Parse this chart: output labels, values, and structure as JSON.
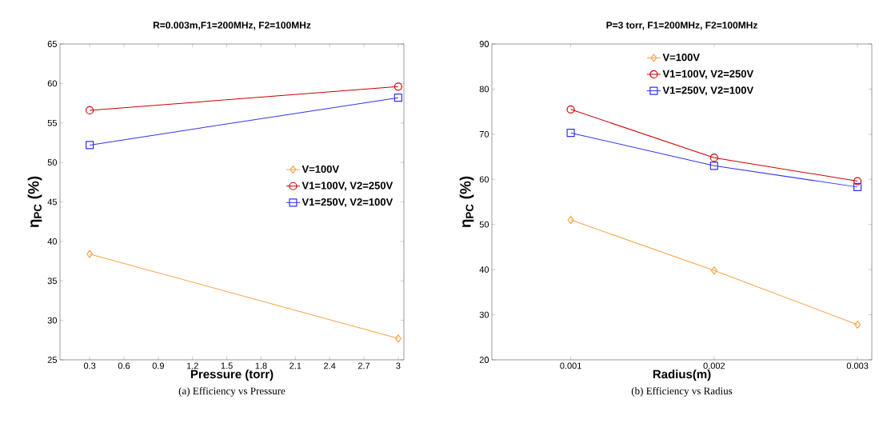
{
  "chart_data": [
    {
      "type": "line",
      "title": "R=0.003m,F1=200MHz, F2=100MHz",
      "xlabel": "Pressure (torr)",
      "ylabel": "η$_{PC}$ (%)",
      "x": [
        0.3,
        3
      ],
      "series": [
        {
          "name": "V=100V",
          "color": "#f5a54a",
          "marker": "diamond",
          "values": [
            38.4,
            27.7
          ]
        },
        {
          "name": "V1=100V, V2=250V",
          "color": "#cc0000",
          "marker": "circle",
          "values": [
            56.6,
            59.6
          ]
        },
        {
          "name": "V1=250V, V2=100V",
          "color": "#3333ee",
          "marker": "square",
          "values": [
            52.2,
            58.2
          ]
        }
      ],
      "xlim": [
        0.04,
        3.05
      ],
      "xticks": [
        0.3,
        0.6,
        0.9,
        1.2,
        1.5,
        1.8,
        2.1,
        2.4,
        2.7,
        3
      ],
      "ylim": [
        25,
        65
      ],
      "yticks": [
        25,
        30,
        35,
        40,
        45,
        50,
        55,
        60,
        65
      ],
      "legend": "right",
      "grid": false,
      "line_style": "solid",
      "annotations": [
        "(a) Efficiency vs Pressure"
      ]
    },
    {
      "type": "line",
      "title": "P=3 torr, F1=200MHz, F2=100MHz",
      "xlabel": "Radius(m)",
      "ylabel": "η$_{PC}$ (%)",
      "x": [
        0.001,
        0.002,
        0.003
      ],
      "series": [
        {
          "name": "V=100V",
          "color": "#f5a54a",
          "marker": "diamond",
          "values": [
            51,
            39.8,
            27.8
          ]
        },
        {
          "name": "V1=100V, V2=250V",
          "color": "#cc0000",
          "marker": "circle",
          "values": [
            75.5,
            64.8,
            59.6
          ]
        },
        {
          "name": "V1=250V, V2=100V",
          "color": "#3333ee",
          "marker": "square",
          "values": [
            70.3,
            63,
            58.3
          ]
        }
      ],
      "xlim": [
        0.00045,
        0.0031
      ],
      "xticks": [
        0.001,
        0.002,
        0.003
      ],
      "ylim": [
        20,
        90
      ],
      "yticks": [
        20,
        30,
        40,
        50,
        60,
        70,
        80,
        90
      ],
      "legend": "top",
      "grid": false,
      "line_style": "solid",
      "annotations": [
        "(b) Efficiency vs Radius"
      ]
    }
  ]
}
